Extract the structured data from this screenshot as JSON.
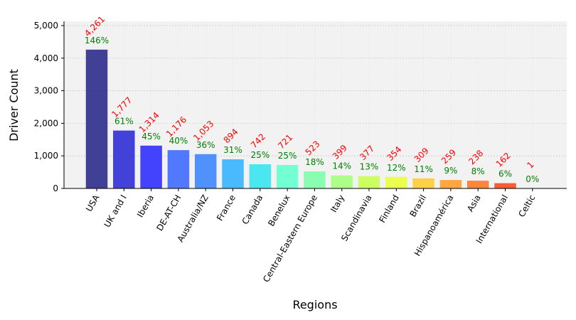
{
  "chart_data": {
    "type": "bar",
    "title": "",
    "xlabel": "Regions",
    "ylabel": "Driver Count",
    "categories": [
      "USA",
      "UK and I",
      "Iberia",
      "DE-AT-CH",
      "Australia/NZ",
      "France",
      "Canada",
      "Benelux",
      "Central-Eastern Europe",
      "Italy",
      "Scandinavia",
      "Finland",
      "Brazil",
      "Hispanoamérica",
      "Asia",
      "International",
      "Celtic"
    ],
    "values": [
      4261,
      1777,
      1314,
      1176,
      1053,
      894,
      742,
      721,
      523,
      399,
      377,
      354,
      309,
      259,
      238,
      162,
      1
    ],
    "count_labels": [
      "4,261",
      "1,777",
      "1,314",
      "1,176",
      "1,053",
      "894",
      "742",
      "721",
      "523",
      "399",
      "377",
      "354",
      "309",
      "259",
      "238",
      "162",
      "1"
    ],
    "percent_labels": [
      "146%",
      "61%",
      "45%",
      "40%",
      "36%",
      "31%",
      "25%",
      "25%",
      "18%",
      "14%",
      "13%",
      "12%",
      "11%",
      "9%",
      "8%",
      "6%",
      "0%"
    ],
    "ylim": [
      0,
      5130
    ],
    "yticks": [
      0,
      1000,
      2000,
      3000,
      4000,
      5000
    ],
    "ytick_labels": [
      "0",
      "1,000",
      "2,000",
      "3,000",
      "4,000",
      "5,000"
    ],
    "grid": true,
    "legend": "none",
    "colors": {
      "bars": [
        "#2c2c8c",
        "#2f2fd6",
        "#3030ff",
        "#3f6bff",
        "#3f86ff",
        "#36b4ff",
        "#36e6f0",
        "#66ffd0",
        "#7dffaa",
        "#a5ff7d",
        "#c8ff52",
        "#eaff3c",
        "#ffcc33",
        "#ff9f2c",
        "#ff7a26",
        "#ff4a1e",
        "#e61a10"
      ],
      "count_label": "#ff0000",
      "percent_label": "#008000",
      "plot_background": "#f2f2f2",
      "grid": "#cccccc"
    }
  }
}
